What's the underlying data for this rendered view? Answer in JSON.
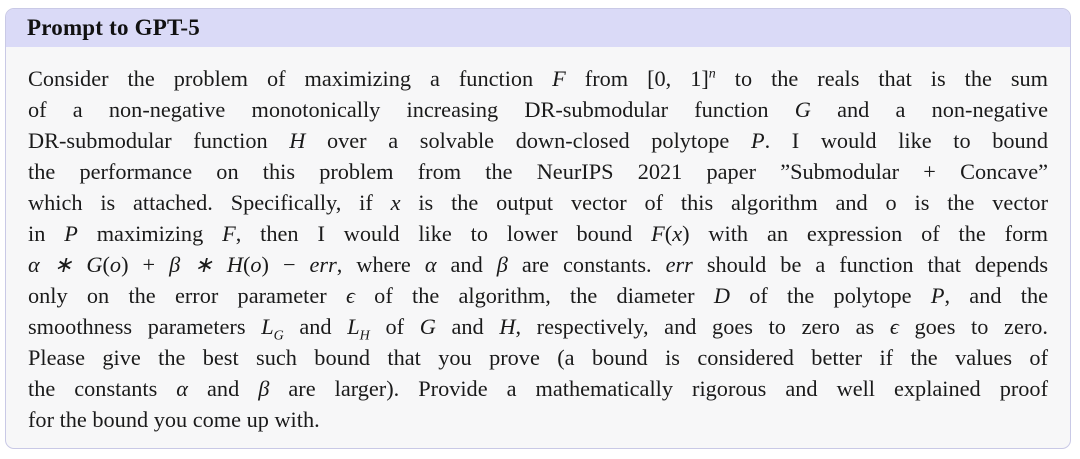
{
  "header": {
    "title": "Prompt to GPT-5"
  },
  "colors": {
    "header_bg": "#dadaf7",
    "body_bg": "#f7f7f8",
    "border": "#c9c9e6"
  },
  "lines": [
    [
      {
        "t": "Consider the problem of maximizing a function "
      },
      {
        "t": "F",
        "m": true
      },
      {
        "t": " from [0, 1]"
      },
      {
        "t": "n",
        "sup": true
      },
      {
        "t": " to the reals that is the sum"
      }
    ],
    [
      {
        "t": "of a non-negative monotonically increasing DR-submodular function "
      },
      {
        "t": "G",
        "m": true
      },
      {
        "t": " and a non-negative"
      }
    ],
    [
      {
        "t": "DR-submodular function "
      },
      {
        "t": "H",
        "m": true
      },
      {
        "t": " over a solvable down-closed polytope "
      },
      {
        "t": "P",
        "m": true
      },
      {
        "t": ". I would like to bound"
      }
    ],
    [
      {
        "t": "the performance on this problem from the NeurIPS 2021 paper ”Submodular + Concave”"
      }
    ],
    [
      {
        "t": "which is attached. Specifically, if "
      },
      {
        "t": "x",
        "m": true
      },
      {
        "t": " is the output vector of this algorithm and o is the vector"
      }
    ],
    [
      {
        "t": "in "
      },
      {
        "t": "P",
        "m": true
      },
      {
        "t": " maximizing "
      },
      {
        "t": "F",
        "m": true
      },
      {
        "t": ", then I would like to lower bound "
      },
      {
        "t": "F",
        "m": true
      },
      {
        "t": "("
      },
      {
        "t": "x",
        "m": true
      },
      {
        "t": ") with an expression of the form"
      }
    ],
    [
      {
        "t": "α ∗ G",
        "m": true
      },
      {
        "t": "("
      },
      {
        "t": "o",
        "m": true
      },
      {
        "t": ") + "
      },
      {
        "t": "β ∗ H",
        "m": true
      },
      {
        "t": "("
      },
      {
        "t": "o",
        "m": true
      },
      {
        "t": ") − "
      },
      {
        "t": "err",
        "m": true
      },
      {
        "t": ", where "
      },
      {
        "t": "α",
        "m": true
      },
      {
        "t": " and "
      },
      {
        "t": "β",
        "m": true
      },
      {
        "t": " are constants. "
      },
      {
        "t": "err",
        "m": true
      },
      {
        "t": " should be a function that depends"
      }
    ],
    [
      {
        "t": "only on the error parameter "
      },
      {
        "t": "ϵ",
        "m": true
      },
      {
        "t": " of the algorithm, the diameter "
      },
      {
        "t": "D",
        "m": true
      },
      {
        "t": " of the polytope "
      },
      {
        "t": "P",
        "m": true
      },
      {
        "t": ", and the"
      }
    ],
    [
      {
        "t": "smoothness parameters "
      },
      {
        "t": "L",
        "m": true
      },
      {
        "t": "G",
        "sub": true
      },
      {
        "t": " and "
      },
      {
        "t": "L",
        "m": true
      },
      {
        "t": "H",
        "sub": true
      },
      {
        "t": " of "
      },
      {
        "t": "G",
        "m": true
      },
      {
        "t": " and "
      },
      {
        "t": "H",
        "m": true
      },
      {
        "t": ", respectively, and goes to zero as "
      },
      {
        "t": "ϵ",
        "m": true
      },
      {
        "t": " goes to zero."
      }
    ],
    [
      {
        "t": "Please give the best such bound that you prove (a bound is considered better if the values of"
      }
    ],
    [
      {
        "t": "the constants "
      },
      {
        "t": "α",
        "m": true
      },
      {
        "t": " and "
      },
      {
        "t": "β",
        "m": true
      },
      {
        "t": " are larger). Provide a mathematically rigorous and well explained proof"
      }
    ],
    [
      {
        "t": "for the bound you come up with."
      }
    ]
  ]
}
